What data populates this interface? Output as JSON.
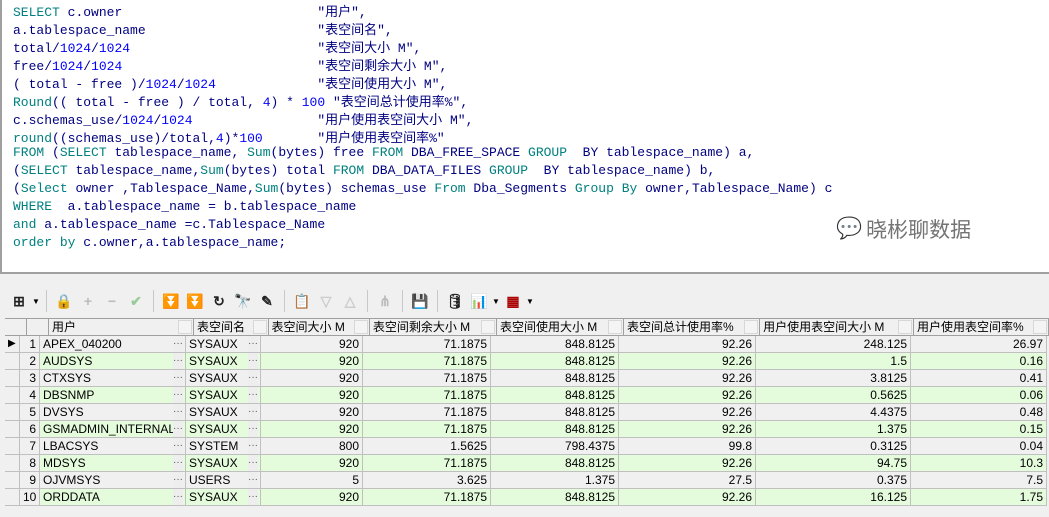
{
  "sql": [
    "SELECT c.owner                         \"用户\",",
    "a.tablespace_name                      \"表空间名\",",
    "total/1024/1024                        \"表空间大小 M\",",
    "free/1024/1024                         \"表空间剩余大小 M\",",
    "( total - free )/1024/1024             \"表空间使用大小 M\",",
    "Round(( total - free ) / total, 4) * 100 \"表空间总计使用率%\",",
    "c.schemas_use/1024/1024                \"用户使用表空间大小 M\",",
    "round((schemas_use)/total,4)*100       \"用户使用表空间率%\"",
    "FROM (SELECT tablespace_name, Sum(bytes) free FROM DBA_FREE_SPACE GROUP  BY tablespace_name) a,",
    "(SELECT tablespace_name,Sum(bytes) total FROM DBA_DATA_FILES GROUP  BY tablespace_name) b,",
    "(Select owner ,Tablespace_Name,Sum(bytes) schemas_use From Dba_Segments Group By owner,Tablespace_Name) c",
    "WHERE  a.tablespace_name = b.tablespace_name",
    "and a.tablespace_name =c.Tablespace_Name",
    "order by c.owner,a.tablespace_name;"
  ],
  "toolbar": [
    "grid-view-icon",
    "lock-icon",
    "add-record-icon",
    "delete-record-icon",
    "post-edit-icon",
    "fetch-next-icon",
    "fetch-last-icon",
    "refresh-icon",
    "find-icon",
    "clear-icon",
    "export-icon",
    "sort-desc-icon",
    "sort-asc-icon",
    "tree-icon",
    "save-icon",
    "database-icon",
    "chart-icon",
    "table-icon"
  ],
  "columns": [
    "用户",
    "表空间名",
    "表空间大小 M",
    "表空间剩余大小 M",
    "表空间使用大小 M",
    "表空间总计使用率%",
    "用户使用表空间大小 M",
    "用户使用表空间率%"
  ],
  "rows": [
    [
      "1",
      "APEX_040200",
      "SYSAUX",
      "920",
      "71.1875",
      "848.8125",
      "92.26",
      "248.125",
      "26.97"
    ],
    [
      "2",
      "AUDSYS",
      "SYSAUX",
      "920",
      "71.1875",
      "848.8125",
      "92.26",
      "1.5",
      "0.16"
    ],
    [
      "3",
      "CTXSYS",
      "SYSAUX",
      "920",
      "71.1875",
      "848.8125",
      "92.26",
      "3.8125",
      "0.41"
    ],
    [
      "4",
      "DBSNMP",
      "SYSAUX",
      "920",
      "71.1875",
      "848.8125",
      "92.26",
      "0.5625",
      "0.06"
    ],
    [
      "5",
      "DVSYS",
      "SYSAUX",
      "920",
      "71.1875",
      "848.8125",
      "92.26",
      "4.4375",
      "0.48"
    ],
    [
      "6",
      "GSMADMIN_INTERNAL",
      "SYSAUX",
      "920",
      "71.1875",
      "848.8125",
      "92.26",
      "1.375",
      "0.15"
    ],
    [
      "7",
      "LBACSYS",
      "SYSTEM",
      "800",
      "1.5625",
      "798.4375",
      "99.8",
      "0.3125",
      "0.04"
    ],
    [
      "8",
      "MDSYS",
      "SYSAUX",
      "920",
      "71.1875",
      "848.8125",
      "92.26",
      "94.75",
      "10.3"
    ],
    [
      "9",
      "OJVMSYS",
      "USERS",
      "5",
      "3.625",
      "1.375",
      "27.5",
      "0.375",
      "7.5"
    ],
    [
      "10",
      "ORDDATA",
      "SYSAUX",
      "920",
      "71.1875",
      "848.8125",
      "92.26",
      "16.125",
      "1.75"
    ]
  ],
  "watermark": "晓彬聊数据",
  "colors": {
    "keyword": "#008080",
    "number": "#0000ff",
    "identifier": "#000080",
    "alt_row": "#e4fbdc"
  }
}
